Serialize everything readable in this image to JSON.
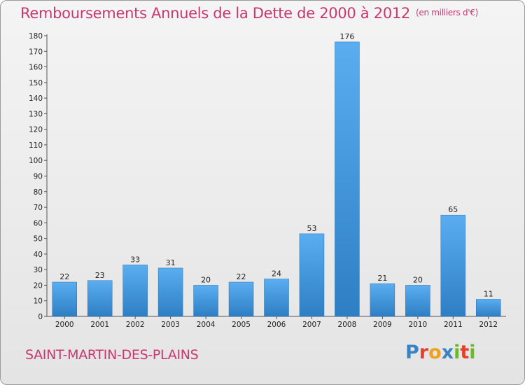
{
  "chart_data": {
    "type": "bar",
    "title": "Remboursements Annuels de la Dette de 2000 à 2012",
    "subtitle": "(en milliers d'€)",
    "categories": [
      "2000",
      "2001",
      "2002",
      "2003",
      "2004",
      "2005",
      "2006",
      "2007",
      "2008",
      "2009",
      "2010",
      "2011",
      "2012"
    ],
    "values": [
      22,
      23,
      33,
      31,
      20,
      22,
      24,
      53,
      176,
      21,
      20,
      65,
      11
    ],
    "ylim": [
      0,
      180
    ],
    "yticks": [
      0,
      10,
      20,
      30,
      40,
      50,
      60,
      70,
      80,
      90,
      100,
      110,
      120,
      130,
      140,
      150,
      160,
      170,
      180
    ],
    "grid": false,
    "legend": "none",
    "bar_color": "#3c8fd6"
  },
  "footer": {
    "town": "SAINT-MARTIN-DES-PLAINS",
    "logo": [
      "P",
      "r",
      "o",
      "x",
      "i",
      "t",
      "i"
    ],
    "logo_colors": [
      "#3a82c4",
      "#e3412c",
      "#f0a020",
      "#3a82c4",
      "#6ab82e",
      "#e3412c",
      "#6ab82e"
    ]
  },
  "colors": {
    "title": "#c8386f",
    "axis": "#555555"
  }
}
